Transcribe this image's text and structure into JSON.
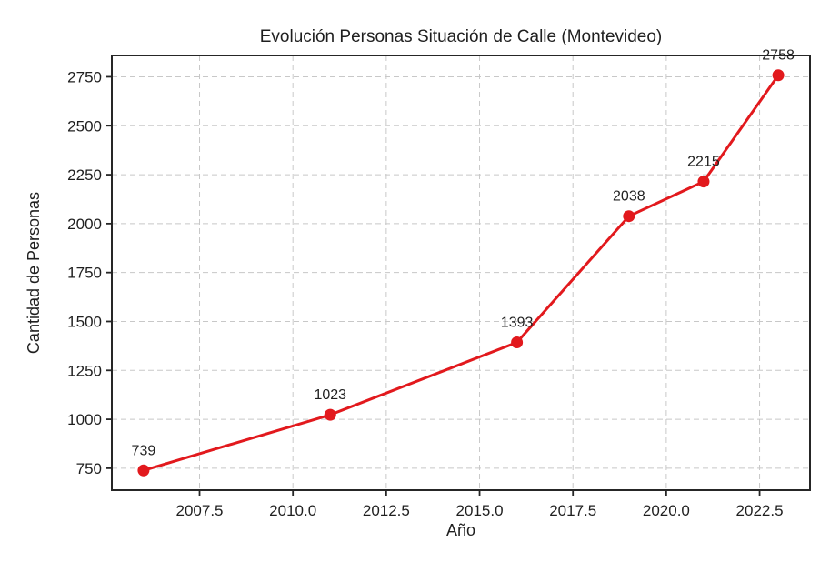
{
  "figure": {
    "background_color": "#ffffff",
    "text_color": "#1f1f1f"
  },
  "chart_data": {
    "type": "line",
    "title": "Evolución Personas Situación de Calle (Montevideo)",
    "xlabel": "Año",
    "ylabel": "Cantidad de Personas",
    "x": [
      2006,
      2011,
      2016,
      2019,
      2021,
      2023
    ],
    "values": [
      739,
      1023,
      1393,
      2038,
      2215,
      2758
    ],
    "point_labels": [
      "739",
      "1023",
      "1393",
      "2038",
      "2215",
      "2758"
    ],
    "xlim": [
      2005.15,
      2023.85
    ],
    "ylim": [
      638,
      2859
    ],
    "xticks": {
      "values": [
        2007.5,
        2010.0,
        2012.5,
        2015.0,
        2017.5,
        2020.0,
        2022.5
      ],
      "labels": [
        "2007.5",
        "2010.0",
        "2012.5",
        "2015.0",
        "2017.5",
        "2020.0",
        "2022.5"
      ]
    },
    "yticks": {
      "values": [
        750,
        1000,
        1250,
        1500,
        1750,
        2000,
        2250,
        2500,
        2750
      ],
      "labels": [
        "750",
        "1000",
        "1250",
        "1500",
        "1750",
        "2000",
        "2250",
        "2500",
        "2750"
      ]
    },
    "series_color": "#e2191d",
    "marker": "circle",
    "grid": {
      "visible": true,
      "style": "dashed",
      "color": "#c8c8c8"
    },
    "legend": null
  }
}
